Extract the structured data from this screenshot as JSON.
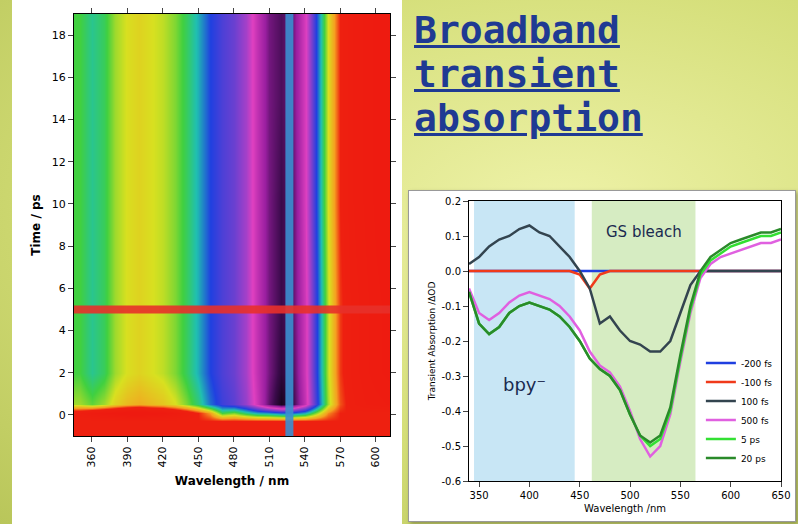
{
  "heading": "Broadband transient absorption",
  "chart_data": [
    {
      "type": "heatmap",
      "x_label": "Wavelength / nm",
      "y_label": "Time / ps",
      "x": [
        350,
        360,
        370,
        380,
        390,
        400,
        410,
        420,
        430,
        440,
        450,
        460,
        470,
        480,
        490,
        500,
        510,
        520,
        530,
        540,
        550,
        560,
        570,
        580,
        590,
        600,
        610
      ],
      "y": [
        -1,
        -0.3,
        0.1,
        0.5,
        2,
        5,
        10,
        15,
        19
      ],
      "z": [
        [
          0,
          0,
          0,
          0,
          0,
          0,
          0,
          0,
          0,
          0,
          0,
          0,
          0,
          0,
          0,
          0,
          0,
          0,
          0,
          0,
          0,
          0,
          0,
          0,
          0,
          0,
          0
        ],
        [
          0,
          0,
          0,
          0,
          0,
          0,
          0,
          0,
          0,
          0,
          0,
          0,
          0,
          0,
          0,
          0,
          0,
          0,
          0,
          0,
          0,
          0,
          0,
          0,
          0,
          0,
          0
        ],
        [
          0.04,
          0.07,
          0.09,
          0.1,
          0.12,
          0.13,
          0.11,
          0.1,
          0.07,
          0.04,
          0.0,
          -0.05,
          -0.15,
          -0.13,
          -0.17,
          -0.2,
          -0.21,
          -0.23,
          -0.23,
          -0.2,
          -0.12,
          -0.04,
          0.0,
          0.0,
          0.0,
          0.0,
          0.0
        ],
        [
          -0.12,
          -0.14,
          -0.12,
          -0.09,
          -0.07,
          -0.06,
          -0.07,
          -0.08,
          -0.1,
          -0.13,
          -0.17,
          -0.23,
          -0.27,
          -0.29,
          -0.33,
          -0.4,
          -0.48,
          -0.53,
          -0.5,
          -0.41,
          -0.26,
          -0.12,
          -0.02,
          0.02,
          0.04,
          0.05,
          0.06
        ],
        [
          -0.15,
          -0.18,
          -0.16,
          -0.12,
          -0.1,
          -0.09,
          -0.1,
          -0.11,
          -0.13,
          -0.16,
          -0.2,
          -0.25,
          -0.28,
          -0.3,
          -0.34,
          -0.41,
          -0.47,
          -0.51,
          -0.49,
          -0.4,
          -0.25,
          -0.11,
          -0.01,
          0.03,
          0.05,
          0.07,
          0.08
        ],
        [
          -0.15,
          -0.18,
          -0.16,
          -0.12,
          -0.1,
          -0.09,
          -0.1,
          -0.11,
          -0.13,
          -0.16,
          -0.2,
          -0.25,
          -0.28,
          -0.3,
          -0.34,
          -0.41,
          -0.47,
          -0.5,
          -0.48,
          -0.4,
          -0.25,
          -0.11,
          -0.01,
          0.03,
          0.05,
          0.07,
          0.08
        ],
        [
          -0.15,
          -0.18,
          -0.16,
          -0.12,
          -0.1,
          -0.09,
          -0.1,
          -0.11,
          -0.13,
          -0.16,
          -0.2,
          -0.25,
          -0.28,
          -0.3,
          -0.34,
          -0.41,
          -0.47,
          -0.5,
          -0.48,
          -0.39,
          -0.24,
          -0.1,
          0.0,
          0.04,
          0.06,
          0.08,
          0.09
        ],
        [
          -0.15,
          -0.18,
          -0.16,
          -0.12,
          -0.1,
          -0.09,
          -0.1,
          -0.11,
          -0.13,
          -0.16,
          -0.2,
          -0.25,
          -0.28,
          -0.3,
          -0.34,
          -0.41,
          -0.47,
          -0.49,
          -0.47,
          -0.39,
          -0.24,
          -0.1,
          0.0,
          0.04,
          0.06,
          0.08,
          0.09
        ],
        [
          -0.15,
          -0.18,
          -0.16,
          -0.12,
          -0.1,
          -0.09,
          -0.1,
          -0.11,
          -0.13,
          -0.16,
          -0.2,
          -0.25,
          -0.28,
          -0.3,
          -0.34,
          -0.41,
          -0.47,
          -0.49,
          -0.47,
          -0.39,
          -0.24,
          -0.1,
          0.0,
          0.04,
          0.06,
          0.08,
          0.09
        ]
      ],
      "zlim": [
        -0.55,
        0.1
      ],
      "xlim": [
        345,
        612
      ],
      "xticks": [
        360,
        390,
        420,
        450,
        480,
        510,
        540,
        570,
        600
      ],
      "ylim": [
        -1,
        19
      ],
      "yticks": [
        0,
        2,
        4,
        6,
        8,
        10,
        12,
        14,
        16,
        18
      ],
      "cuts": [
        {
          "axis": "x",
          "value": 527,
          "color": "#3b8fd0"
        },
        {
          "axis": "y",
          "value": 5,
          "color": "#e8302a"
        }
      ]
    },
    {
      "type": "line",
      "x_label": "Wavelength /nm",
      "y_label": "Transient Absorption /ΔOD",
      "x": [
        340,
        350,
        360,
        370,
        380,
        390,
        400,
        410,
        420,
        430,
        440,
        450,
        460,
        470,
        480,
        490,
        500,
        510,
        520,
        530,
        540,
        550,
        560,
        570,
        580,
        590,
        600,
        610,
        620,
        630,
        640,
        650
      ],
      "series": [
        {
          "name": "-200 fs",
          "color": "#1f3fe0",
          "values": [
            0,
            0,
            0,
            0,
            0,
            0,
            0,
            0,
            0,
            0,
            0,
            0,
            0,
            0,
            0,
            0,
            0,
            0,
            0,
            0,
            0,
            0,
            0,
            0,
            0,
            0,
            0,
            0,
            0,
            0,
            0,
            0
          ]
        },
        {
          "name": "-100 fs",
          "color": "#f03a1a",
          "values": [
            0,
            0,
            0,
            0,
            0,
            0,
            0,
            0,
            0,
            0,
            0,
            -0.01,
            -0.05,
            -0.01,
            0,
            0,
            0,
            0,
            0,
            0,
            0,
            0,
            0,
            0,
            0,
            0,
            0,
            0,
            0,
            0,
            0,
            0
          ]
        },
        {
          "name": "100 fs",
          "color": "#33444f",
          "values": [
            0.02,
            0.04,
            0.07,
            0.09,
            0.1,
            0.12,
            0.13,
            0.11,
            0.1,
            0.07,
            0.04,
            0.0,
            -0.05,
            -0.15,
            -0.13,
            -0.17,
            -0.2,
            -0.21,
            -0.23,
            -0.23,
            -0.2,
            -0.12,
            -0.04,
            0.0,
            0.0,
            0.0,
            0.0,
            0.0,
            0.0,
            0.0,
            0.0,
            0.0
          ]
        },
        {
          "name": "500 fs",
          "color": "#e060e0",
          "values": [
            -0.05,
            -0.12,
            -0.14,
            -0.12,
            -0.09,
            -0.07,
            -0.06,
            -0.07,
            -0.08,
            -0.1,
            -0.13,
            -0.17,
            -0.23,
            -0.27,
            -0.29,
            -0.33,
            -0.4,
            -0.48,
            -0.53,
            -0.5,
            -0.41,
            -0.26,
            -0.12,
            -0.02,
            0.02,
            0.04,
            0.05,
            0.06,
            0.07,
            0.08,
            0.08,
            0.09
          ]
        },
        {
          "name": "5 ps",
          "color": "#33e033",
          "values": [
            -0.06,
            -0.15,
            -0.18,
            -0.16,
            -0.12,
            -0.1,
            -0.09,
            -0.1,
            -0.11,
            -0.13,
            -0.16,
            -0.2,
            -0.25,
            -0.28,
            -0.3,
            -0.34,
            -0.41,
            -0.47,
            -0.5,
            -0.48,
            -0.4,
            -0.25,
            -0.11,
            -0.01,
            0.03,
            0.05,
            0.07,
            0.08,
            0.09,
            0.1,
            0.1,
            0.11
          ]
        },
        {
          "name": "20 ps",
          "color": "#2a8a2a",
          "values": [
            -0.06,
            -0.15,
            -0.18,
            -0.16,
            -0.12,
            -0.1,
            -0.09,
            -0.1,
            -0.11,
            -0.13,
            -0.16,
            -0.2,
            -0.25,
            -0.28,
            -0.3,
            -0.34,
            -0.41,
            -0.47,
            -0.49,
            -0.47,
            -0.39,
            -0.24,
            -0.1,
            0.0,
            0.04,
            0.06,
            0.08,
            0.09,
            0.1,
            0.11,
            0.11,
            0.12
          ]
        }
      ],
      "xlim": [
        340,
        650
      ],
      "xticks": [
        350,
        400,
        450,
        500,
        550,
        600,
        650
      ],
      "ylim": [
        -0.6,
        0.2
      ],
      "yticks": [
        -0.6,
        -0.5,
        -0.4,
        -0.3,
        -0.2,
        -0.1,
        {
          "value": 0,
          "label": "0.0"
        },
        0.1,
        0.2
      ],
      "legend": "lower right",
      "regions": [
        {
          "label": "bpy⁻",
          "x0": 345,
          "x1": 445,
          "color": "#c8e6f5"
        },
        {
          "label": "GS bleach",
          "x0": 462,
          "x1": 565,
          "color": "#d6ecc2"
        }
      ]
    }
  ]
}
